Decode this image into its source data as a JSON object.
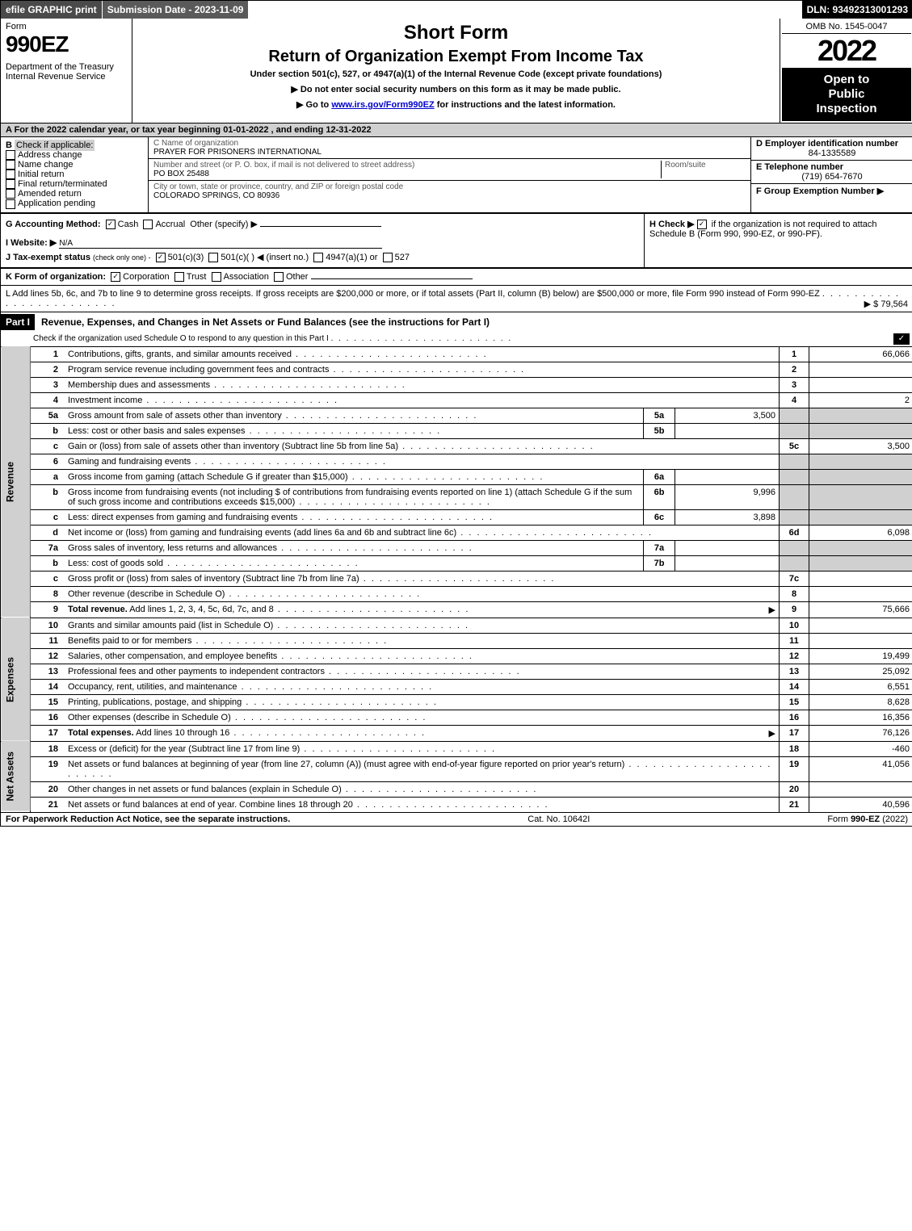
{
  "top_bar": {
    "efile": "efile GRAPHIC print",
    "submission": "Submission Date - 2023-11-09",
    "dln": "DLN: 93492313001293"
  },
  "header": {
    "form_label": "Form",
    "form_no": "990EZ",
    "dept": "Department of the Treasury",
    "irs": "Internal Revenue Service",
    "short_form": "Short Form",
    "title2": "Return of Organization Exempt From Income Tax",
    "subtitle": "Under section 501(c), 527, or 4947(a)(1) of the Internal Revenue Code (except private foundations)",
    "instr1": "▶ Do not enter social security numbers on this form as it may be made public.",
    "instr2_pre": "▶ Go to ",
    "instr2_link": "www.irs.gov/Form990EZ",
    "instr2_post": " for instructions and the latest information.",
    "omb": "OMB No. 1545-0047",
    "year": "2022",
    "inspection_line1": "Open to",
    "inspection_line2": "Public",
    "inspection_line3": "Inspection"
  },
  "row_a": "A  For the 2022 calendar year, or tax year beginning 01-01-2022 , and ending 12-31-2022",
  "section_b": {
    "label": "B",
    "check_if": "Check if applicable:",
    "opts": [
      "Address change",
      "Name change",
      "Initial return",
      "Final return/terminated",
      "Amended return",
      "Application pending"
    ]
  },
  "section_c": {
    "name_lbl": "C Name of organization",
    "name_val": "PRAYER FOR PRISONERS INTERNATIONAL",
    "street_lbl": "Number and street (or P. O. box, if mail is not delivered to street address)",
    "street_val": "PO BOX 25488",
    "room_lbl": "Room/suite",
    "city_lbl": "City or town, state or province, country, and ZIP or foreign postal code",
    "city_val": "COLORADO SPRINGS, CO  80936"
  },
  "section_d": {
    "d_lbl": "D Employer identification number",
    "d_val": "84-1335589",
    "e_lbl": "E Telephone number",
    "e_val": "(719) 654-7670",
    "f_lbl": "F Group Exemption Number  ▶"
  },
  "section_g": {
    "lbl": "G Accounting Method:",
    "cash": "Cash",
    "accrual": "Accrual",
    "other": "Other (specify) ▶",
    "website_lbl": "I Website: ▶",
    "website_val": "N/A",
    "j_lbl": "J Tax-exempt status",
    "j_sub": "(check only one) -",
    "j_501c3": "501(c)(3)",
    "j_501c": "501(c)(  ) ◀ (insert no.)",
    "j_4947": "4947(a)(1) or",
    "j_527": "527"
  },
  "section_h": {
    "text_pre": "H  Check ▶ ",
    "text_post": " if the organization is not required to attach Schedule B (Form 990, 990-EZ, or 990-PF)."
  },
  "line_k": {
    "lbl": "K Form of organization:",
    "corp": "Corporation",
    "trust": "Trust",
    "assoc": "Association",
    "other": "Other"
  },
  "line_l": {
    "text": "L Add lines 5b, 6c, and 7b to line 9 to determine gross receipts. If gross receipts are $200,000 or more, or if total assets (Part II, column (B) below) are $500,000 or more, file Form 990 instead of Form 990-EZ",
    "amount": "▶ $ 79,564"
  },
  "part1": {
    "hdr": "Part I",
    "title": "Revenue, Expenses, and Changes in Net Assets or Fund Balances (see the instructions for Part I)",
    "sched_o": "Check if the organization used Schedule O to respond to any question in this Part I"
  },
  "side_labels": {
    "revenue": "Revenue",
    "expenses": "Expenses",
    "net": "Net Assets"
  },
  "rows": [
    {
      "n": "1",
      "desc": "Contributions, gifts, grants, and similar amounts received",
      "rn": "1",
      "rv": "66,066"
    },
    {
      "n": "2",
      "desc": "Program service revenue including government fees and contracts",
      "rn": "2",
      "rv": ""
    },
    {
      "n": "3",
      "desc": "Membership dues and assessments",
      "rn": "3",
      "rv": ""
    },
    {
      "n": "4",
      "desc": "Investment income",
      "rn": "4",
      "rv": "2"
    },
    {
      "n": "5a",
      "desc": "Gross amount from sale of assets other than inventory",
      "lb": "5a",
      "lv": "3,500",
      "shade": true
    },
    {
      "n": "b",
      "desc": "Less: cost or other basis and sales expenses",
      "lb": "5b",
      "lv": "",
      "shade": true
    },
    {
      "n": "c",
      "desc": "Gain or (loss) from sale of assets other than inventory (Subtract line 5b from line 5a)",
      "rn": "5c",
      "rv": "3,500"
    },
    {
      "n": "6",
      "desc": "Gaming and fundraising events",
      "shade": true,
      "noRn": true
    },
    {
      "n": "a",
      "desc": "Gross income from gaming (attach Schedule G if greater than $15,000)",
      "lb": "6a",
      "lv": "",
      "shade": true
    },
    {
      "n": "b",
      "desc": "Gross income from fundraising events (not including $                  of contributions from fundraising events reported on line 1) (attach Schedule G if the sum of such gross income and contributions exceeds $15,000)",
      "lb": "6b",
      "lv": "9,996",
      "shade": true
    },
    {
      "n": "c",
      "desc": "Less: direct expenses from gaming and fundraising events",
      "lb": "6c",
      "lv": "3,898",
      "shade": true
    },
    {
      "n": "d",
      "desc": "Net income or (loss) from gaming and fundraising events (add lines 6a and 6b and subtract line 6c)",
      "rn": "6d",
      "rv": "6,098"
    },
    {
      "n": "7a",
      "desc": "Gross sales of inventory, less returns and allowances",
      "lb": "7a",
      "lv": "",
      "shade": true
    },
    {
      "n": "b",
      "desc": "Less: cost of goods sold",
      "lb": "7b",
      "lv": "",
      "shade": true
    },
    {
      "n": "c",
      "desc": "Gross profit or (loss) from sales of inventory (Subtract line 7b from line 7a)",
      "rn": "7c",
      "rv": ""
    },
    {
      "n": "8",
      "desc": "Other revenue (describe in Schedule O)",
      "rn": "8",
      "rv": ""
    },
    {
      "n": "9",
      "desc": "Total revenue. Add lines 1, 2, 3, 4, 5c, 6d, 7c, and 8",
      "rn": "9",
      "rv": "75,666",
      "bold": true,
      "arrow": true
    }
  ],
  "exp_rows": [
    {
      "n": "10",
      "desc": "Grants and similar amounts paid (list in Schedule O)",
      "rn": "10",
      "rv": ""
    },
    {
      "n": "11",
      "desc": "Benefits paid to or for members",
      "rn": "11",
      "rv": ""
    },
    {
      "n": "12",
      "desc": "Salaries, other compensation, and employee benefits",
      "rn": "12",
      "rv": "19,499"
    },
    {
      "n": "13",
      "desc": "Professional fees and other payments to independent contractors",
      "rn": "13",
      "rv": "25,092"
    },
    {
      "n": "14",
      "desc": "Occupancy, rent, utilities, and maintenance",
      "rn": "14",
      "rv": "6,551"
    },
    {
      "n": "15",
      "desc": "Printing, publications, postage, and shipping",
      "rn": "15",
      "rv": "8,628"
    },
    {
      "n": "16",
      "desc": "Other expenses (describe in Schedule O)",
      "rn": "16",
      "rv": "16,356"
    },
    {
      "n": "17",
      "desc": "Total expenses. Add lines 10 through 16",
      "rn": "17",
      "rv": "76,126",
      "bold": true,
      "arrow": true
    }
  ],
  "net_rows": [
    {
      "n": "18",
      "desc": "Excess or (deficit) for the year (Subtract line 17 from line 9)",
      "rn": "18",
      "rv": "-460"
    },
    {
      "n": "19",
      "desc": "Net assets or fund balances at beginning of year (from line 27, column (A)) (must agree with end-of-year figure reported on prior year's return)",
      "rn": "19",
      "rv": "41,056"
    },
    {
      "n": "20",
      "desc": "Other changes in net assets or fund balances (explain in Schedule O)",
      "rn": "20",
      "rv": ""
    },
    {
      "n": "21",
      "desc": "Net assets or fund balances at end of year. Combine lines 18 through 20",
      "rn": "21",
      "rv": "40,596"
    }
  ],
  "footer": {
    "left": "For Paperwork Reduction Act Notice, see the separate instructions.",
    "mid": "Cat. No. 10642I",
    "right_pre": "Form ",
    "right_form": "990-EZ",
    "right_post": " (2022)"
  }
}
